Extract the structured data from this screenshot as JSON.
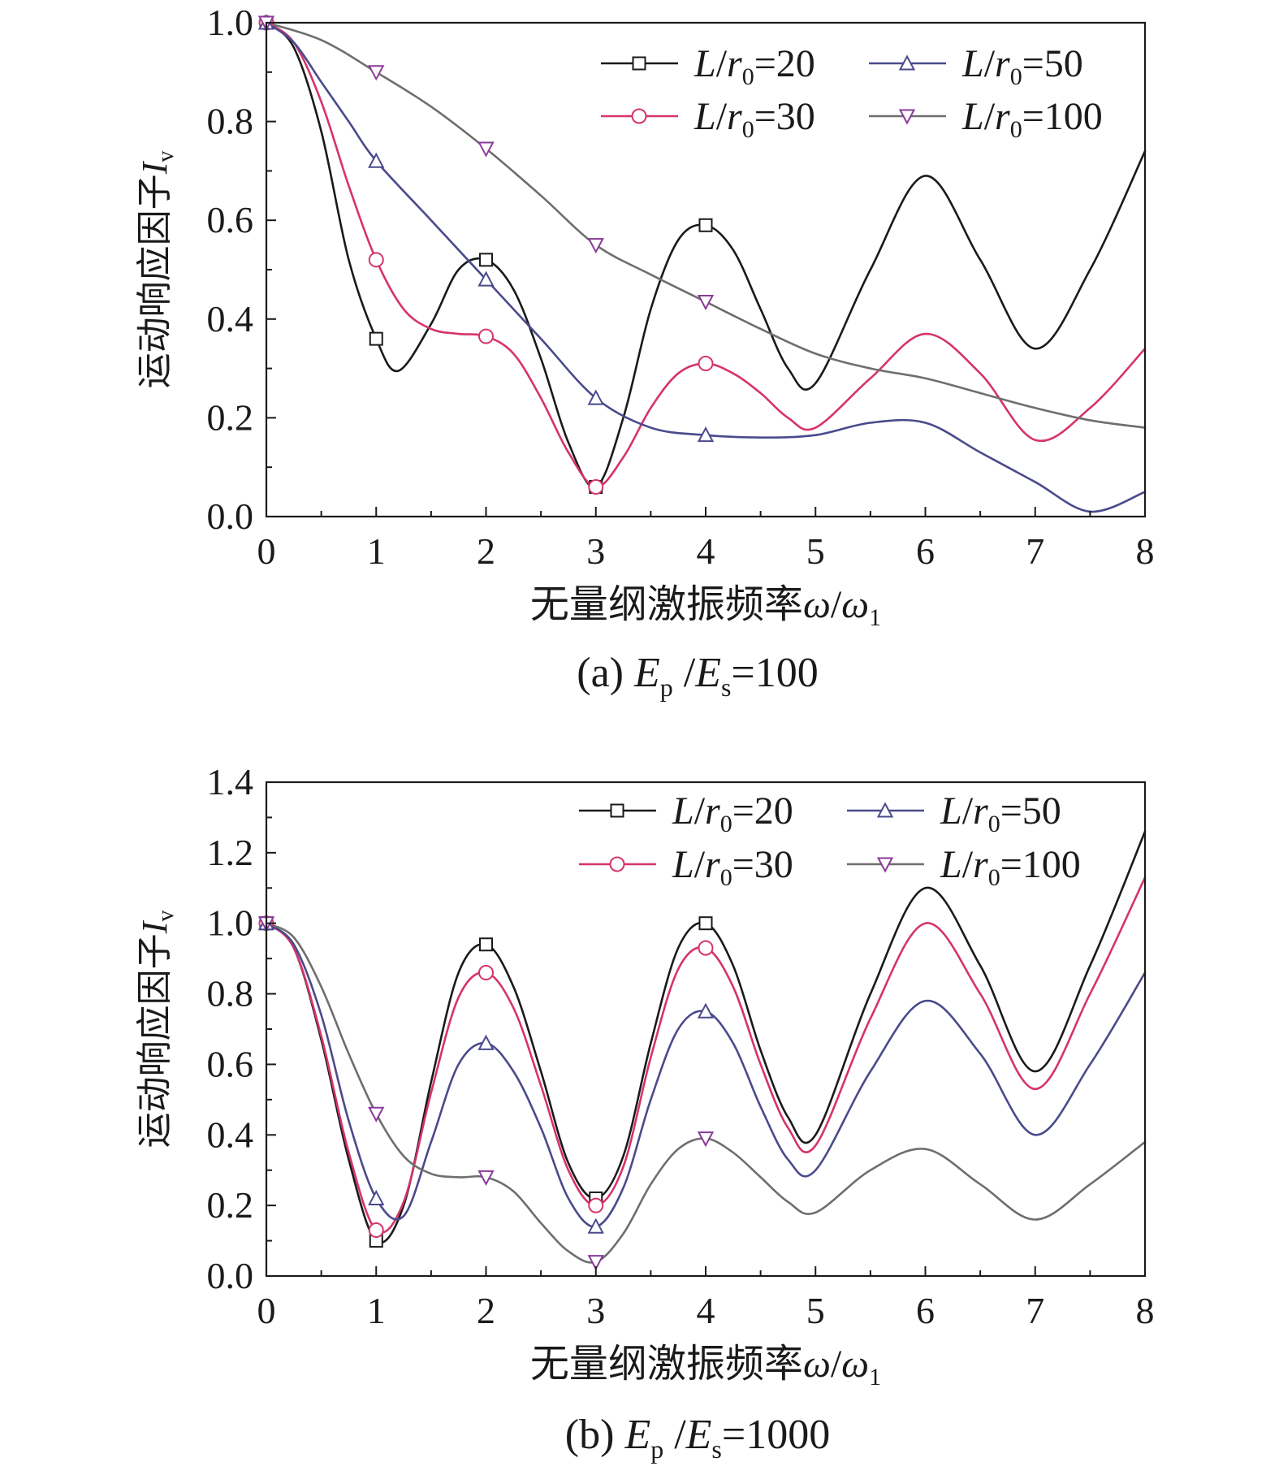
{
  "chart_data": [
    {
      "type": "line",
      "panel": "(a)",
      "caption": {
        "prefix": "(a) ",
        "e1": "E",
        "sub1": "p",
        "slash": " /",
        "e2": "E",
        "sub2": "s",
        "rest": "=100"
      },
      "xlabel": {
        "text": "无量纲激振频率",
        "var1": "ω",
        "slash": "/",
        "var2": "ω",
        "sub": "1"
      },
      "ylabel": {
        "text": "运动响应因子",
        "var": "I",
        "sub": "v"
      },
      "xlim": [
        0,
        8
      ],
      "ylim": [
        0,
        1.0
      ],
      "x_ticks": [
        "0",
        "1",
        "2",
        "3",
        "4",
        "5",
        "6",
        "7",
        "8"
      ],
      "y_ticks": [
        "0.0",
        "0.2",
        "0.4",
        "0.6",
        "0.8",
        "1.0"
      ],
      "legend_position": "top-right",
      "series": [
        {
          "name": "L/r0=20",
          "label_pre": "L",
          "label_mid": "/",
          "label_var": "r",
          "label_sub": "0",
          "label_val": "=20",
          "color": "#1a1a1a",
          "marker": "square",
          "x": [
            0,
            0.25,
            0.5,
            0.75,
            1,
            1.2,
            1.5,
            1.75,
            2,
            2.25,
            2.5,
            2.75,
            3,
            3.25,
            3.5,
            3.75,
            4,
            4.25,
            4.5,
            4.75,
            5,
            5.5,
            6,
            6.5,
            7,
            7.5,
            8
          ],
          "y": [
            1.0,
            0.95,
            0.78,
            0.52,
            0.36,
            0.295,
            0.39,
            0.5,
            0.52,
            0.46,
            0.32,
            0.15,
            0.06,
            0.2,
            0.42,
            0.56,
            0.59,
            0.54,
            0.42,
            0.3,
            0.27,
            0.5,
            0.69,
            0.52,
            0.34,
            0.5,
            0.74
          ],
          "marker_x": [
            0,
            1,
            2,
            3,
            4
          ],
          "marker_y": [
            1.0,
            0.36,
            0.52,
            0.06,
            0.59
          ]
        },
        {
          "name": "L/r0=30",
          "label_pre": "L",
          "label_mid": "/",
          "label_var": "r",
          "label_sub": "0",
          "label_val": "=30",
          "color": "#d6336c",
          "marker": "circle",
          "x": [
            0,
            0.25,
            0.5,
            0.75,
            1,
            1.25,
            1.5,
            1.75,
            2,
            2.25,
            2.5,
            2.75,
            3,
            3.25,
            3.5,
            3.75,
            4,
            4.25,
            4.5,
            4.75,
            5,
            5.5,
            6,
            6.5,
            7,
            7.5,
            8
          ],
          "y": [
            1.0,
            0.96,
            0.84,
            0.67,
            0.52,
            0.42,
            0.38,
            0.37,
            0.365,
            0.33,
            0.24,
            0.13,
            0.06,
            0.12,
            0.22,
            0.29,
            0.31,
            0.29,
            0.25,
            0.2,
            0.18,
            0.28,
            0.37,
            0.29,
            0.155,
            0.22,
            0.34
          ],
          "marker_x": [
            0,
            1,
            2,
            3,
            4
          ],
          "marker_y": [
            1.0,
            0.52,
            0.365,
            0.06,
            0.31
          ]
        },
        {
          "name": "L/r0=50",
          "label_pre": "L",
          "label_mid": "/",
          "label_var": "r",
          "label_sub": "0",
          "label_val": "=50",
          "color": "#4a4a8c",
          "marker": "triangle-up",
          "x": [
            0,
            0.25,
            0.5,
            0.75,
            1,
            1.5,
            2,
            2.5,
            3,
            3.5,
            4,
            4.5,
            5,
            5.5,
            6,
            6.5,
            7,
            7.5,
            8
          ],
          "y": [
            1.0,
            0.96,
            0.88,
            0.8,
            0.72,
            0.6,
            0.48,
            0.36,
            0.24,
            0.18,
            0.165,
            0.16,
            0.165,
            0.19,
            0.19,
            0.13,
            0.07,
            0.01,
            0.05
          ],
          "marker_x": [
            0,
            1,
            2,
            3,
            4
          ],
          "marker_y": [
            1.0,
            0.72,
            0.48,
            0.24,
            0.165
          ]
        },
        {
          "name": "L/r0=100",
          "label_pre": "L",
          "label_mid": "/",
          "label_var": "r",
          "label_sub": "0",
          "label_val": "=100",
          "color": "#6e6e6e",
          "marker": "triangle-down",
          "marker_color": "#8a3a9a",
          "x": [
            0,
            0.5,
            1,
            1.5,
            2,
            2.5,
            3,
            3.5,
            4,
            4.5,
            5,
            5.5,
            6,
            6.5,
            7,
            7.5,
            8
          ],
          "y": [
            1.0,
            0.965,
            0.9,
            0.83,
            0.745,
            0.65,
            0.55,
            0.49,
            0.435,
            0.38,
            0.33,
            0.3,
            0.28,
            0.25,
            0.22,
            0.195,
            0.18
          ],
          "marker_x": [
            0,
            1,
            2,
            3,
            4
          ],
          "marker_y": [
            1.0,
            0.9,
            0.745,
            0.55,
            0.435
          ]
        }
      ]
    },
    {
      "type": "line",
      "panel": "(b)",
      "caption": {
        "prefix": "(b) ",
        "e1": "E",
        "sub1": "p",
        "slash": " /",
        "e2": "E",
        "sub2": "s",
        "rest": "=1000"
      },
      "xlabel": {
        "text": "无量纲激振频率",
        "var1": "ω",
        "slash": "/",
        "var2": "ω",
        "sub": "1"
      },
      "ylabel": {
        "text": "运动响应因子",
        "var": "I",
        "sub": "v"
      },
      "xlim": [
        0,
        8
      ],
      "ylim": [
        0,
        1.4
      ],
      "x_ticks": [
        "0",
        "1",
        "2",
        "3",
        "4",
        "5",
        "6",
        "7",
        "8"
      ],
      "y_ticks": [
        "0.0",
        "0.2",
        "0.4",
        "0.6",
        "0.8",
        "1.0",
        "1.2",
        "1.4"
      ],
      "legend_position": "top-right",
      "series": [
        {
          "name": "L/r0=20",
          "label_pre": "L",
          "label_mid": "/",
          "label_var": "r",
          "label_sub": "0",
          "label_val": "=20",
          "color": "#1a1a1a",
          "marker": "square",
          "x": [
            0,
            0.25,
            0.5,
            0.75,
            1,
            1.25,
            1.5,
            1.75,
            2,
            2.25,
            2.5,
            2.75,
            3,
            3.25,
            3.5,
            3.75,
            4,
            4.25,
            4.5,
            4.75,
            5,
            5.5,
            6,
            6.5,
            7,
            7.5,
            8
          ],
          "y": [
            1.0,
            0.93,
            0.67,
            0.33,
            0.1,
            0.2,
            0.55,
            0.86,
            0.94,
            0.82,
            0.58,
            0.32,
            0.22,
            0.34,
            0.66,
            0.93,
            1.0,
            0.88,
            0.64,
            0.45,
            0.4,
            0.8,
            1.1,
            0.88,
            0.58,
            0.88,
            1.26
          ],
          "marker_x": [
            0,
            1,
            2,
            3,
            4
          ],
          "marker_y": [
            1.0,
            0.1,
            0.94,
            0.22,
            1.0
          ]
        },
        {
          "name": "L/r0=30",
          "label_pre": "L",
          "label_mid": "/",
          "label_var": "r",
          "label_sub": "0",
          "label_val": "=30",
          "color": "#d6336c",
          "marker": "circle",
          "x": [
            0,
            0.25,
            0.5,
            0.75,
            1,
            1.25,
            1.5,
            1.75,
            2,
            2.25,
            2.5,
            2.75,
            3,
            3.25,
            3.5,
            3.75,
            4,
            4.25,
            4.5,
            4.75,
            5,
            5.5,
            6,
            6.5,
            7,
            7.5,
            8
          ],
          "y": [
            1.0,
            0.93,
            0.68,
            0.35,
            0.13,
            0.21,
            0.52,
            0.79,
            0.86,
            0.76,
            0.54,
            0.3,
            0.2,
            0.31,
            0.62,
            0.87,
            0.93,
            0.82,
            0.6,
            0.42,
            0.37,
            0.73,
            1.0,
            0.8,
            0.53,
            0.8,
            1.13
          ],
          "marker_x": [
            0,
            1,
            2,
            3,
            4
          ],
          "marker_y": [
            1.0,
            0.13,
            0.86,
            0.2,
            0.93
          ]
        },
        {
          "name": "L/r0=50",
          "label_pre": "L",
          "label_mid": "/",
          "label_var": "r",
          "label_sub": "0",
          "label_val": "=50",
          "color": "#4a4a8c",
          "marker": "triangle-up",
          "x": [
            0,
            0.25,
            0.5,
            0.75,
            1,
            1.25,
            1.5,
            1.75,
            2,
            2.25,
            2.5,
            2.75,
            3,
            3.25,
            3.5,
            3.75,
            4,
            4.25,
            4.5,
            4.75,
            5,
            5.5,
            6,
            6.5,
            7,
            7.5,
            8
          ],
          "y": [
            1.0,
            0.94,
            0.74,
            0.44,
            0.22,
            0.17,
            0.38,
            0.6,
            0.66,
            0.58,
            0.42,
            0.22,
            0.14,
            0.25,
            0.5,
            0.7,
            0.75,
            0.66,
            0.48,
            0.33,
            0.3,
            0.58,
            0.78,
            0.63,
            0.4,
            0.6,
            0.86
          ],
          "marker_x": [
            0,
            1,
            2,
            3,
            4
          ],
          "marker_y": [
            1.0,
            0.22,
            0.66,
            0.14,
            0.75
          ]
        },
        {
          "name": "L/r0=100",
          "label_pre": "L",
          "label_mid": "/",
          "label_var": "r",
          "label_sub": "0",
          "label_val": "=100",
          "color": "#6e6e6e",
          "marker": "triangle-down",
          "marker_color": "#8a3a9a",
          "x": [
            0,
            0.25,
            0.5,
            0.75,
            1,
            1.25,
            1.5,
            1.75,
            2,
            2.25,
            2.5,
            2.75,
            3,
            3.25,
            3.5,
            3.75,
            4,
            4.25,
            4.5,
            4.75,
            5,
            5.5,
            6,
            6.5,
            7,
            7.5,
            8
          ],
          "y": [
            1.0,
            0.96,
            0.82,
            0.63,
            0.46,
            0.34,
            0.29,
            0.28,
            0.28,
            0.24,
            0.15,
            0.07,
            0.04,
            0.12,
            0.26,
            0.36,
            0.39,
            0.35,
            0.28,
            0.21,
            0.18,
            0.3,
            0.36,
            0.26,
            0.16,
            0.26,
            0.38
          ],
          "marker_x": [
            0,
            1,
            2,
            3,
            4
          ],
          "marker_y": [
            1.0,
            0.46,
            0.28,
            0.04,
            0.39
          ]
        }
      ]
    }
  ]
}
